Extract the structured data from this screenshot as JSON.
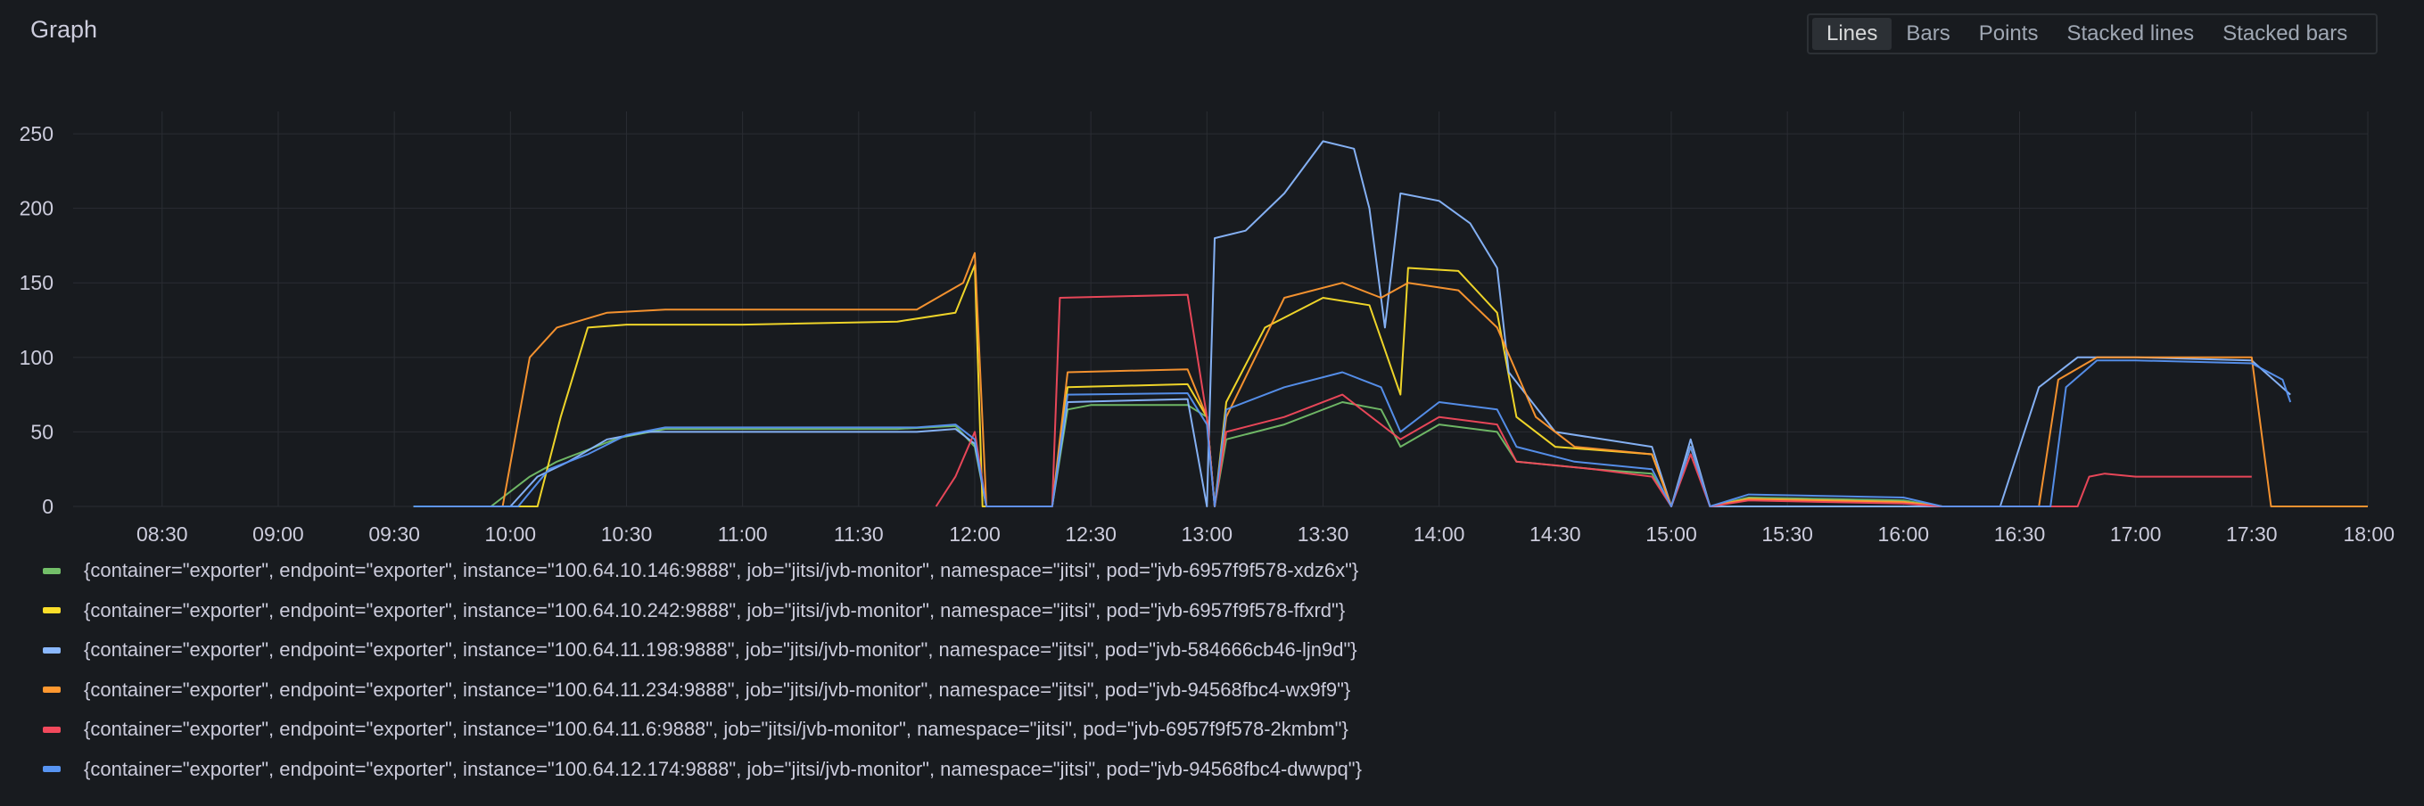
{
  "panel": {
    "title": "Graph"
  },
  "toolbar": {
    "modes": [
      {
        "label": "Lines",
        "active": true
      },
      {
        "label": "Bars",
        "active": false
      },
      {
        "label": "Points",
        "active": false
      },
      {
        "label": "Stacked lines",
        "active": false
      },
      {
        "label": "Stacked bars",
        "active": false
      }
    ]
  },
  "colors": {
    "background": "#181b1f",
    "grid": "#2a2d33",
    "text": "#ccccdc"
  },
  "chart_data": {
    "type": "line",
    "title": "",
    "xlabel": "",
    "ylabel": "",
    "grid": true,
    "legend_placement": "bottom",
    "xlim": [
      "08:07",
      "18:00"
    ],
    "ylim": [
      0,
      265
    ],
    "x_ticks": [
      "08:30",
      "09:00",
      "09:30",
      "10:00",
      "10:30",
      "11:00",
      "11:30",
      "12:00",
      "12:30",
      "13:00",
      "13:30",
      "14:00",
      "14:30",
      "15:00",
      "15:30",
      "16:00",
      "16:30",
      "17:00",
      "17:30",
      "18:00"
    ],
    "y_ticks": [
      0,
      50,
      100,
      150,
      200,
      250
    ],
    "series": [
      {
        "name": "{container=\"exporter\", endpoint=\"exporter\", instance=\"100.64.10.146:9888\", job=\"jitsi/jvb-monitor\", namespace=\"jitsi\", pod=\"jvb-6957f9f578-xdz6x\"}",
        "color": "#73bf69",
        "points": [
          [
            "09:35",
            0
          ],
          [
            "09:55",
            0
          ],
          [
            "10:05",
            20
          ],
          [
            "10:12",
            30
          ],
          [
            "10:20",
            38
          ],
          [
            "10:28",
            46
          ],
          [
            "10:40",
            52
          ],
          [
            "11:00",
            52
          ],
          [
            "11:40",
            52
          ],
          [
            "11:55",
            54
          ],
          [
            "12:00",
            40
          ],
          [
            "12:03",
            0
          ],
          [
            "12:20",
            0
          ],
          [
            "12:24",
            65
          ],
          [
            "12:30",
            68
          ],
          [
            "12:55",
            68
          ],
          [
            "13:00",
            60
          ],
          [
            "13:02",
            0
          ],
          [
            "13:05",
            45
          ],
          [
            "13:20",
            55
          ],
          [
            "13:35",
            70
          ],
          [
            "13:45",
            65
          ],
          [
            "13:50",
            40
          ],
          [
            "14:00",
            55
          ],
          [
            "14:15",
            50
          ],
          [
            "14:20",
            30
          ],
          [
            "14:40",
            25
          ],
          [
            "14:55",
            22
          ],
          [
            "15:00",
            0
          ],
          [
            "15:05",
            40
          ],
          [
            "15:10",
            0
          ],
          [
            "15:20",
            6
          ],
          [
            "16:00",
            4
          ],
          [
            "16:10",
            0
          ],
          [
            "16:20",
            0
          ],
          [
            "16:30",
            0
          ]
        ]
      },
      {
        "name": "{container=\"exporter\", endpoint=\"exporter\", instance=\"100.64.10.242:9888\", job=\"jitsi/jvb-monitor\", namespace=\"jitsi\", pod=\"jvb-6957f9f578-ffxrd\"}",
        "color": "#fade2a",
        "points": [
          [
            "09:35",
            0
          ],
          [
            "10:07",
            0
          ],
          [
            "10:13",
            60
          ],
          [
            "10:20",
            120
          ],
          [
            "10:30",
            122
          ],
          [
            "11:00",
            122
          ],
          [
            "11:40",
            124
          ],
          [
            "11:55",
            130
          ],
          [
            "12:00",
            162
          ],
          [
            "12:02",
            0
          ],
          [
            "12:20",
            0
          ],
          [
            "12:24",
            80
          ],
          [
            "12:55",
            82
          ],
          [
            "13:00",
            60
          ],
          [
            "13:02",
            0
          ],
          [
            "13:05",
            70
          ],
          [
            "13:15",
            120
          ],
          [
            "13:30",
            140
          ],
          [
            "13:42",
            135
          ],
          [
            "13:50",
            75
          ],
          [
            "13:52",
            160
          ],
          [
            "14:05",
            158
          ],
          [
            "14:15",
            130
          ],
          [
            "14:20",
            60
          ],
          [
            "14:30",
            40
          ],
          [
            "14:55",
            35
          ],
          [
            "15:00",
            0
          ],
          [
            "15:05",
            40
          ],
          [
            "15:10",
            0
          ],
          [
            "15:20",
            5
          ],
          [
            "16:00",
            3
          ],
          [
            "16:10",
            0
          ],
          [
            "16:20",
            0
          ]
        ]
      },
      {
        "name": "{container=\"exporter\", endpoint=\"exporter\", instance=\"100.64.11.198:9888\", job=\"jitsi/jvb-monitor\", namespace=\"jitsi\", pod=\"jvb-584666cb46-ljn9d\"}",
        "color": "#8ab8ff",
        "points": [
          [
            "09:35",
            0
          ],
          [
            "10:00",
            0
          ],
          [
            "10:07",
            20
          ],
          [
            "10:15",
            30
          ],
          [
            "10:25",
            45
          ],
          [
            "10:35",
            50
          ],
          [
            "11:00",
            50
          ],
          [
            "11:45",
            50
          ],
          [
            "11:55",
            52
          ],
          [
            "12:00",
            42
          ],
          [
            "12:03",
            0
          ],
          [
            "12:20",
            0
          ],
          [
            "12:24",
            70
          ],
          [
            "12:55",
            72
          ],
          [
            "13:00",
            0
          ],
          [
            "13:02",
            180
          ],
          [
            "13:10",
            185
          ],
          [
            "13:20",
            210
          ],
          [
            "13:30",
            245
          ],
          [
            "13:38",
            240
          ],
          [
            "13:42",
            200
          ],
          [
            "13:46",
            120
          ],
          [
            "13:50",
            210
          ],
          [
            "14:00",
            205
          ],
          [
            "14:08",
            190
          ],
          [
            "14:15",
            160
          ],
          [
            "14:18",
            90
          ],
          [
            "14:30",
            50
          ],
          [
            "14:55",
            40
          ],
          [
            "15:00",
            0
          ],
          [
            "15:05",
            45
          ],
          [
            "15:10",
            0
          ],
          [
            "16:20",
            0
          ],
          [
            "16:25",
            0
          ],
          [
            "16:35",
            80
          ],
          [
            "16:45",
            100
          ],
          [
            "17:00",
            100
          ],
          [
            "17:30",
            98
          ],
          [
            "17:40",
            75
          ]
        ]
      },
      {
        "name": "{container=\"exporter\", endpoint=\"exporter\", instance=\"100.64.11.234:9888\", job=\"jitsi/jvb-monitor\", namespace=\"jitsi\", pod=\"jvb-94568fbc4-wx9f9\"}",
        "color": "#ff9830",
        "points": [
          [
            "09:40",
            0
          ],
          [
            "09:58",
            0
          ],
          [
            "10:05",
            100
          ],
          [
            "10:12",
            120
          ],
          [
            "10:25",
            130
          ],
          [
            "10:40",
            132
          ],
          [
            "11:00",
            132
          ],
          [
            "11:45",
            132
          ],
          [
            "11:57",
            150
          ],
          [
            "12:00",
            170
          ],
          [
            "12:03",
            0
          ],
          [
            "12:20",
            0
          ],
          [
            "12:24",
            90
          ],
          [
            "12:55",
            92
          ],
          [
            "13:00",
            60
          ],
          [
            "13:02",
            0
          ],
          [
            "13:05",
            60
          ],
          [
            "13:20",
            140
          ],
          [
            "13:35",
            150
          ],
          [
            "13:45",
            140
          ],
          [
            "13:52",
            150
          ],
          [
            "14:05",
            145
          ],
          [
            "14:15",
            120
          ],
          [
            "14:25",
            60
          ],
          [
            "14:35",
            40
          ],
          [
            "14:55",
            35
          ],
          [
            "15:00",
            0
          ],
          [
            "15:05",
            40
          ],
          [
            "15:10",
            0
          ],
          [
            "15:20",
            5
          ],
          [
            "16:00",
            3
          ],
          [
            "16:10",
            0
          ],
          [
            "16:20",
            0
          ],
          [
            "16:35",
            0
          ],
          [
            "16:40",
            85
          ],
          [
            "16:50",
            100
          ],
          [
            "17:00",
            100
          ],
          [
            "17:30",
            100
          ],
          [
            "17:35",
            0
          ],
          [
            "17:55",
            0
          ],
          [
            "18:00",
            0
          ]
        ]
      },
      {
        "name": "{container=\"exporter\", endpoint=\"exporter\", instance=\"100.64.11.6:9888\", job=\"jitsi/jvb-monitor\", namespace=\"jitsi\", pod=\"jvb-6957f9f578-2kmbm\"}",
        "color": "#f2495c",
        "points": [
          [
            "11:50",
            0
          ],
          [
            "11:55",
            20
          ],
          [
            "12:00",
            50
          ],
          [
            "12:03",
            0
          ],
          [
            "12:20",
            0
          ],
          [
            "12:22",
            140
          ],
          [
            "12:55",
            142
          ],
          [
            "13:00",
            60
          ],
          [
            "13:02",
            0
          ],
          [
            "13:05",
            50
          ],
          [
            "13:20",
            60
          ],
          [
            "13:35",
            75
          ],
          [
            "13:50",
            45
          ],
          [
            "14:00",
            60
          ],
          [
            "14:15",
            55
          ],
          [
            "14:20",
            30
          ],
          [
            "14:40",
            25
          ],
          [
            "14:55",
            20
          ],
          [
            "15:00",
            0
          ],
          [
            "15:05",
            35
          ],
          [
            "15:10",
            0
          ],
          [
            "15:20",
            4
          ],
          [
            "16:00",
            2
          ],
          [
            "16:10",
            0
          ],
          [
            "16:35",
            0
          ],
          [
            "16:45",
            0
          ],
          [
            "16:48",
            20
          ],
          [
            "16:52",
            22
          ],
          [
            "17:00",
            20
          ],
          [
            "17:30",
            20
          ]
        ]
      },
      {
        "name": "{container=\"exporter\", endpoint=\"exporter\", instance=\"100.64.12.174:9888\", job=\"jitsi/jvb-monitor\", namespace=\"jitsi\", pod=\"jvb-94568fbc4-dwwpq\"}",
        "color": "#5794f2",
        "points": [
          [
            "09:35",
            0
          ],
          [
            "10:02",
            0
          ],
          [
            "10:10",
            25
          ],
          [
            "10:20",
            35
          ],
          [
            "10:30",
            48
          ],
          [
            "10:40",
            53
          ],
          [
            "11:00",
            53
          ],
          [
            "11:45",
            53
          ],
          [
            "11:55",
            55
          ],
          [
            "12:00",
            45
          ],
          [
            "12:03",
            0
          ],
          [
            "12:20",
            0
          ],
          [
            "12:24",
            75
          ],
          [
            "12:55",
            76
          ],
          [
            "13:00",
            55
          ],
          [
            "13:02",
            0
          ],
          [
            "13:05",
            65
          ],
          [
            "13:20",
            80
          ],
          [
            "13:35",
            90
          ],
          [
            "13:45",
            80
          ],
          [
            "13:50",
            50
          ],
          [
            "14:00",
            70
          ],
          [
            "14:15",
            65
          ],
          [
            "14:20",
            40
          ],
          [
            "14:35",
            30
          ],
          [
            "14:55",
            25
          ],
          [
            "15:00",
            0
          ],
          [
            "15:05",
            40
          ],
          [
            "15:10",
            0
          ],
          [
            "15:20",
            8
          ],
          [
            "16:00",
            6
          ],
          [
            "16:10",
            0
          ],
          [
            "16:25",
            0
          ],
          [
            "16:38",
            0
          ],
          [
            "16:42",
            80
          ],
          [
            "16:50",
            98
          ],
          [
            "17:00",
            98
          ],
          [
            "17:30",
            96
          ],
          [
            "17:38",
            85
          ],
          [
            "17:40",
            70
          ]
        ]
      }
    ]
  }
}
